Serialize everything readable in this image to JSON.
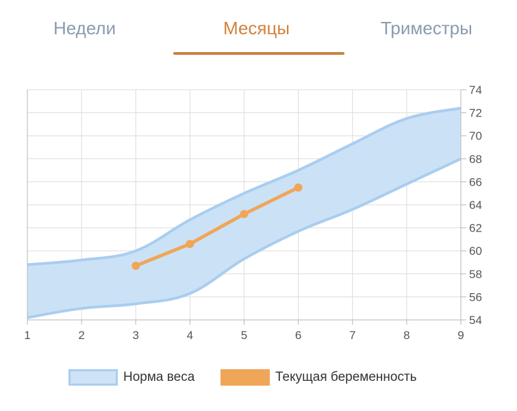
{
  "tabs": [
    {
      "label": "Недели",
      "active": false
    },
    {
      "label": "Месяцы",
      "active": true
    },
    {
      "label": "Триместры",
      "active": false
    }
  ],
  "colors": {
    "tab_inactive": "#8a9bb0",
    "tab_active": "#d4813d",
    "band_fill": "#c8e0f5",
    "band_edge": "#a9cdf0",
    "line": "#f0a658",
    "grid": "#dcdcdc",
    "axis_text": "#555555"
  },
  "chart_data": {
    "type": "line",
    "x_ticks": [
      1,
      2,
      3,
      4,
      5,
      6,
      7,
      8,
      9
    ],
    "y_ticks": [
      54,
      56,
      58,
      60,
      62,
      64,
      66,
      68,
      70,
      72,
      74
    ],
    "xlim": [
      1,
      9
    ],
    "ylim": [
      54,
      74
    ],
    "y_axis_side": "right",
    "grid": true,
    "legend_position": "bottom",
    "series": [
      {
        "name": "Норма веса",
        "type": "area-range",
        "x": [
          1,
          2,
          3,
          4,
          5,
          6,
          7,
          8,
          9
        ],
        "lower": [
          54.2,
          55.0,
          55.4,
          56.3,
          59.3,
          61.7,
          63.6,
          65.8,
          68.0
        ],
        "upper": [
          58.8,
          59.2,
          60.0,
          62.7,
          65.0,
          67.0,
          69.3,
          71.5,
          72.4
        ]
      },
      {
        "name": "Текущая беременность",
        "type": "line",
        "x": [
          3,
          4,
          5,
          6
        ],
        "y": [
          58.7,
          60.6,
          63.2,
          65.5
        ]
      }
    ]
  }
}
